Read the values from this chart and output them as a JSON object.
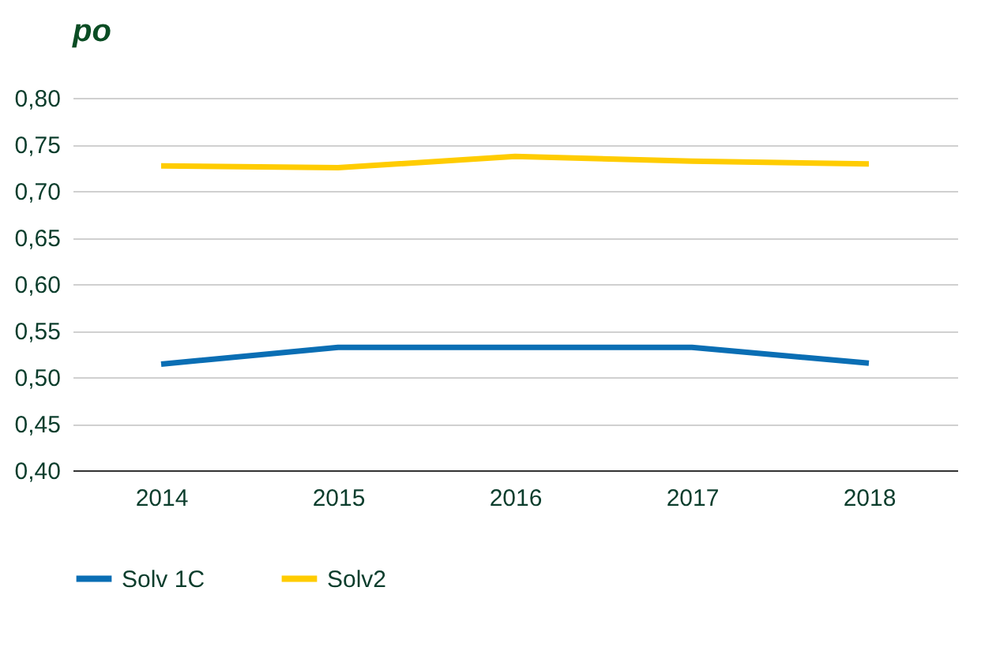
{
  "chart_data": {
    "type": "line",
    "title": "po",
    "categories": [
      "2014",
      "2015",
      "2016",
      "2017",
      "2018"
    ],
    "series": [
      {
        "name": "Solv 1C",
        "color": "#0a6eb4",
        "values": [
          0.514,
          0.532,
          0.532,
          0.532,
          0.515
        ]
      },
      {
        "name": "Solv2",
        "color": "#ffcc00",
        "values": [
          0.727,
          0.725,
          0.737,
          0.732,
          0.729
        ]
      }
    ],
    "ylim": [
      0.4,
      0.8
    ],
    "yticks": [
      {
        "value": 0.4,
        "label": "0,40"
      },
      {
        "value": 0.45,
        "label": "0,45"
      },
      {
        "value": 0.5,
        "label": "0,50"
      },
      {
        "value": 0.55,
        "label": "0,55"
      },
      {
        "value": 0.6,
        "label": "0,60"
      },
      {
        "value": 0.65,
        "label": "0,65"
      },
      {
        "value": 0.7,
        "label": "0,70"
      },
      {
        "value": 0.75,
        "label": "0,75"
      },
      {
        "value": 0.8,
        "label": "0,80"
      }
    ],
    "grid": "y",
    "legend": "bottom left",
    "marker": "none",
    "line_style": "solid"
  }
}
